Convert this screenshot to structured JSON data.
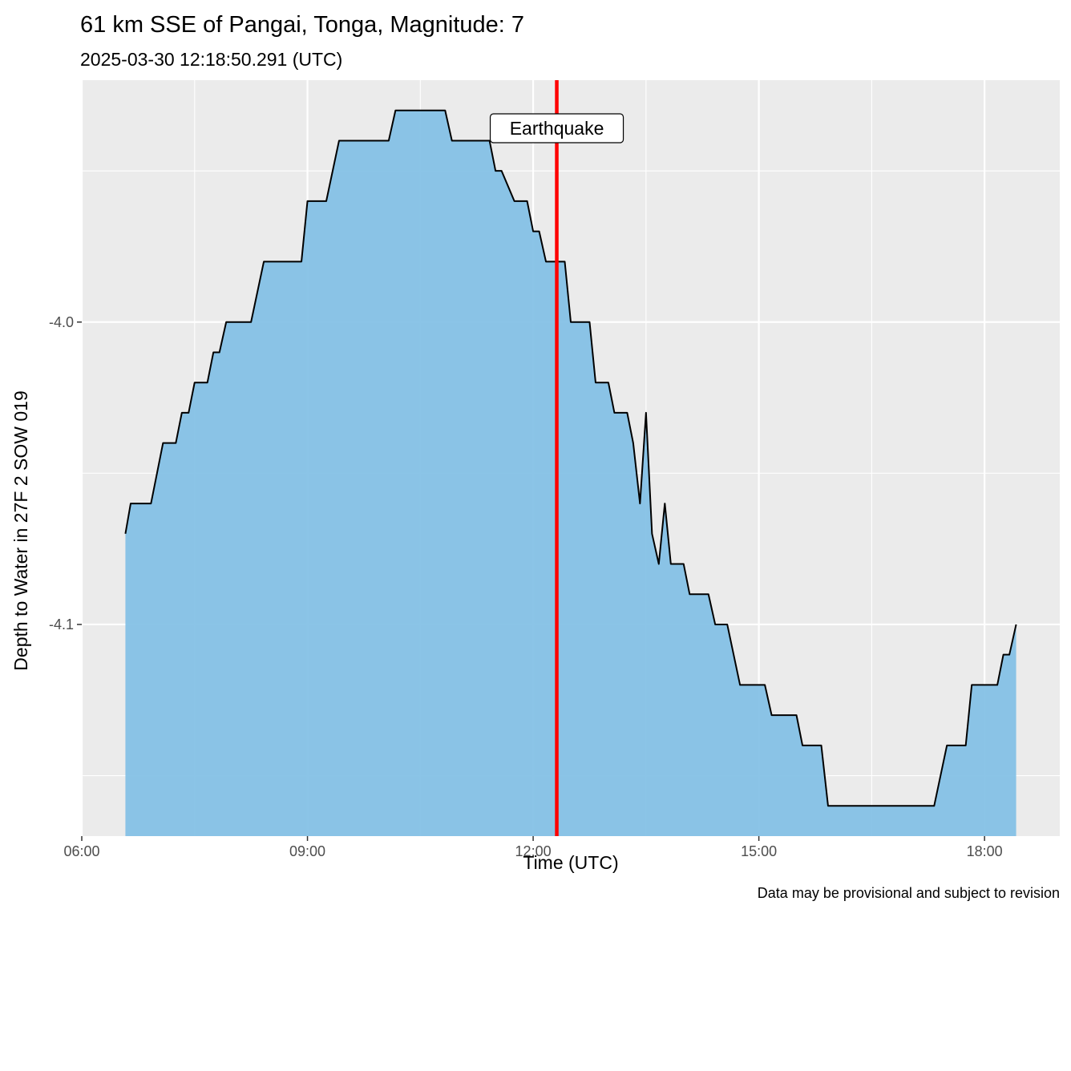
{
  "chart_data": {
    "type": "area",
    "title": "61 km SSE of Pangai, Tonga, Magnitude: 7",
    "subtitle": "2025-03-30 12:18:50.291 (UTC)",
    "xlabel": "Time (UTC)",
    "ylabel": "Depth to Water in 27F 2 SOW 019",
    "caption": "Data may be provisional and subject to revision",
    "x_ticks": [
      {
        "t": 6.0,
        "label": "06:00"
      },
      {
        "t": 9.0,
        "label": "09:00"
      },
      {
        "t": 12.0,
        "label": "12:00"
      },
      {
        "t": 15.0,
        "label": "15:00"
      },
      {
        "t": 18.0,
        "label": "18:00"
      }
    ],
    "y_ticks": [
      {
        "v": -4.0,
        "label": "-4.0"
      },
      {
        "v": -4.1,
        "label": "-4.1"
      }
    ],
    "x_range_hours": [
      6.0,
      19.0
    ],
    "y_range": [
      -4.17,
      -3.92
    ],
    "fill_color": "#85C1E6",
    "line_color": "#000000",
    "event_line": {
      "t": 12.314,
      "color": "#FF0000",
      "label": "Earthquake"
    },
    "series": [
      {
        "points": [
          [
            6.58,
            -4.07
          ],
          [
            6.65,
            -4.06
          ],
          [
            6.92,
            -4.06
          ],
          [
            7.08,
            -4.04
          ],
          [
            7.25,
            -4.04
          ],
          [
            7.33,
            -4.03
          ],
          [
            7.42,
            -4.03
          ],
          [
            7.5,
            -4.02
          ],
          [
            7.67,
            -4.02
          ],
          [
            7.75,
            -4.01
          ],
          [
            7.83,
            -4.01
          ],
          [
            7.92,
            -4.0
          ],
          [
            8.25,
            -4.0
          ],
          [
            8.42,
            -3.98
          ],
          [
            8.92,
            -3.98
          ],
          [
            9.0,
            -3.96
          ],
          [
            9.25,
            -3.96
          ],
          [
            9.42,
            -3.94
          ],
          [
            10.08,
            -3.94
          ],
          [
            10.17,
            -3.93
          ],
          [
            10.83,
            -3.93
          ],
          [
            10.92,
            -3.94
          ],
          [
            11.42,
            -3.94
          ],
          [
            11.5,
            -3.95
          ],
          [
            11.58,
            -3.95
          ],
          [
            11.75,
            -3.96
          ],
          [
            11.92,
            -3.96
          ],
          [
            12.0,
            -3.97
          ],
          [
            12.08,
            -3.97
          ],
          [
            12.17,
            -3.98
          ],
          [
            12.42,
            -3.98
          ],
          [
            12.5,
            -4.0
          ],
          [
            12.75,
            -4.0
          ],
          [
            12.83,
            -4.02
          ],
          [
            13.0,
            -4.02
          ],
          [
            13.08,
            -4.03
          ],
          [
            13.25,
            -4.03
          ],
          [
            13.33,
            -4.04
          ],
          [
            13.42,
            -4.06
          ],
          [
            13.5,
            -4.03
          ],
          [
            13.58,
            -4.07
          ],
          [
            13.67,
            -4.08
          ],
          [
            13.75,
            -4.06
          ],
          [
            13.83,
            -4.08
          ],
          [
            14.0,
            -4.08
          ],
          [
            14.08,
            -4.09
          ],
          [
            14.33,
            -4.09
          ],
          [
            14.42,
            -4.1
          ],
          [
            14.58,
            -4.1
          ],
          [
            14.75,
            -4.12
          ],
          [
            15.08,
            -4.12
          ],
          [
            15.17,
            -4.13
          ],
          [
            15.5,
            -4.13
          ],
          [
            15.58,
            -4.14
          ],
          [
            15.83,
            -4.14
          ],
          [
            15.92,
            -4.16
          ],
          [
            17.33,
            -4.16
          ],
          [
            17.5,
            -4.14
          ],
          [
            17.75,
            -4.14
          ],
          [
            17.83,
            -4.12
          ],
          [
            18.17,
            -4.12
          ],
          [
            18.25,
            -4.11
          ],
          [
            18.33,
            -4.11
          ],
          [
            18.42,
            -4.1
          ]
        ]
      }
    ]
  }
}
